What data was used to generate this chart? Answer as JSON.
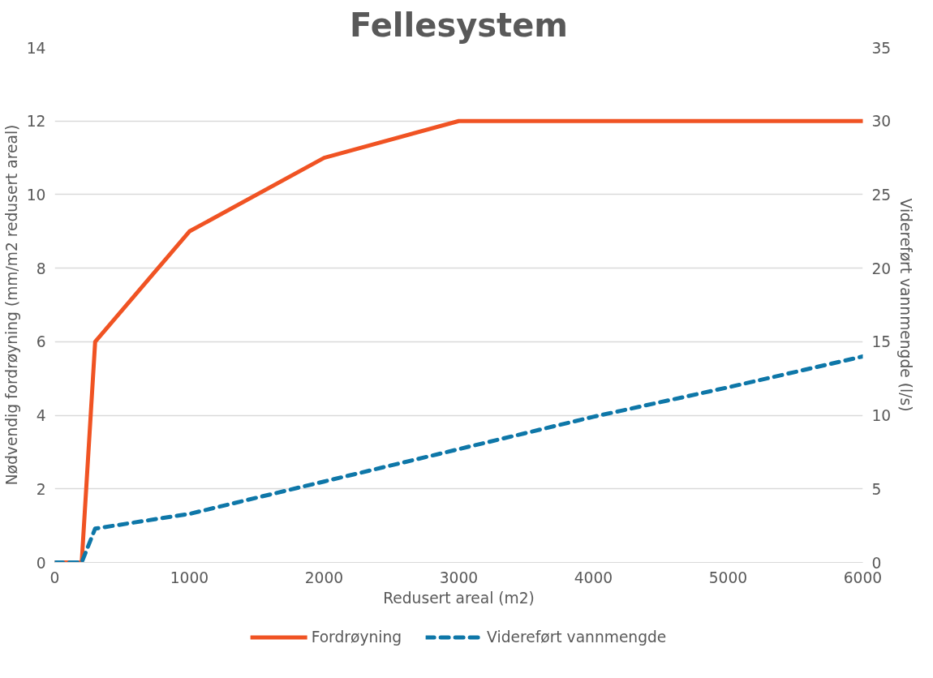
{
  "chart_data": {
    "type": "line",
    "title": "Fellesystem",
    "xlabel": "Redusert areal (m2)",
    "ylabel": "Nødvendig fordrøyning (mm/m2 redusert areal)",
    "y2label": "Videreført vannmengde (l/s)",
    "xlim": [
      0,
      6000
    ],
    "xticks": [
      0,
      1000,
      2000,
      3000,
      4000,
      5000,
      6000
    ],
    "ylim": [
      0,
      14
    ],
    "yticks": [
      0,
      2,
      4,
      6,
      8,
      10,
      12,
      14
    ],
    "y2lim": [
      0,
      35
    ],
    "y2ticks": [
      0,
      5,
      10,
      15,
      20,
      25,
      30,
      35
    ],
    "grid": "y",
    "legend": "bottom",
    "series": [
      {
        "name": "Fordrøyning",
        "color": "#f05323",
        "line_style": "solid",
        "x": [
          0,
          200,
          300,
          1000,
          2000,
          3000,
          6000
        ],
        "values": [
          0,
          0,
          6,
          9,
          11,
          12,
          12
        ]
      },
      {
        "name": "Videreført vannmengde",
        "color": "#0e77a8",
        "line_style": "dashed",
        "axis": "y2",
        "x": [
          0,
          200,
          300,
          1000,
          2000,
          3000,
          4000,
          5000,
          6000
        ],
        "values": [
          0,
          0,
          2.3,
          3.3,
          5.5,
          7.7,
          9.9,
          11.9,
          14.0
        ]
      }
    ]
  }
}
